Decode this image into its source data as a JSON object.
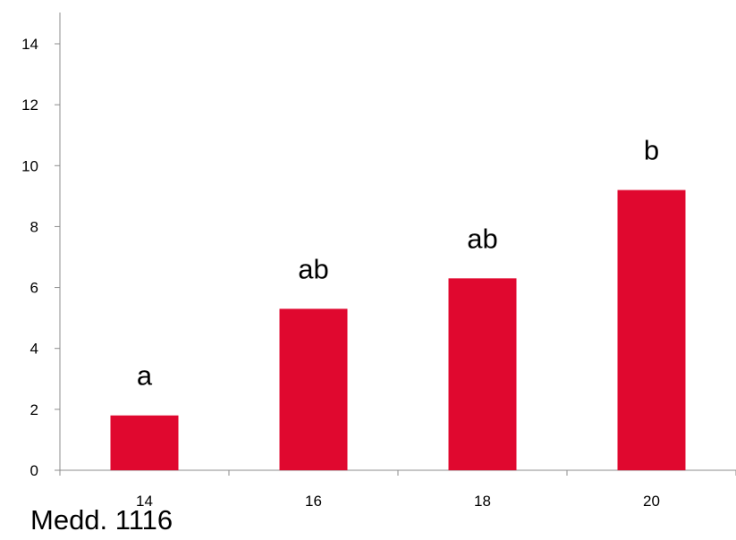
{
  "chart_data": {
    "type": "bar",
    "title": "",
    "xlabel": "",
    "ylabel": "",
    "categories": [
      "14",
      "16",
      "18",
      "20"
    ],
    "values": [
      1.8,
      5.3,
      6.3,
      9.2
    ],
    "annotations": [
      "a",
      "ab",
      "ab",
      "b"
    ],
    "ylim": [
      0,
      14
    ],
    "yticks": [
      0,
      2,
      4,
      6,
      8,
      10,
      12,
      14
    ],
    "grid": false,
    "legend": "none",
    "bar_color": "#e0082f",
    "axis_color": "#8c8c8c"
  },
  "footer": {
    "label": "Medd. 1116"
  }
}
